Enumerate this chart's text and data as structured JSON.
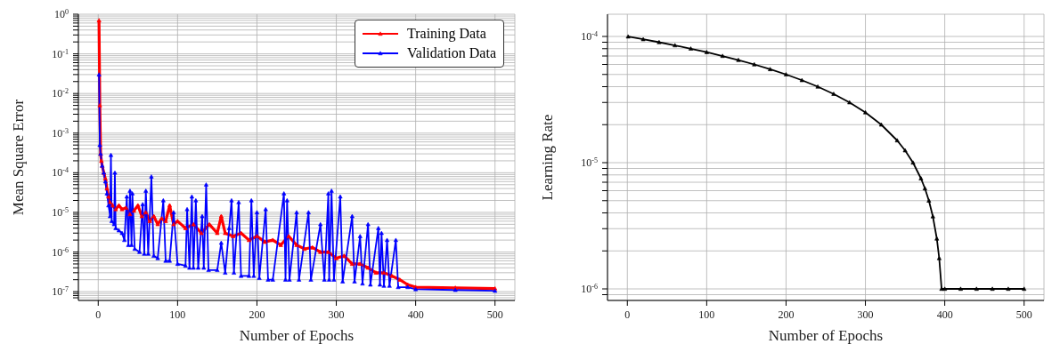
{
  "chart_data": [
    {
      "type": "line",
      "xlabel": "Number of Epochs",
      "ylabel": "Mean Square Error",
      "log": "y",
      "grid": true,
      "legend": "top right",
      "marker": "triangle",
      "line_style": "solid",
      "xlim": [
        -25,
        525
      ],
      "xticks": [
        0,
        100,
        200,
        300,
        400,
        500
      ],
      "ylim": [
        6e-08,
        1
      ],
      "yticks": [
        {
          "value": 1,
          "label": "10$^{0}$"
        },
        {
          "value": 0.9,
          "label": null
        },
        {
          "value": 0.8,
          "label": null
        },
        {
          "value": 0.7,
          "label": null
        },
        {
          "value": 0.6,
          "label": null
        },
        {
          "value": 0.5,
          "label": null
        },
        {
          "value": 0.4,
          "label": null
        },
        {
          "value": 0.3,
          "label": null
        },
        {
          "value": 0.2,
          "label": null
        },
        {
          "value": 0.1,
          "label": "10$^{-1}$"
        },
        {
          "value": 0.09,
          "label": null
        },
        {
          "value": 0.08,
          "label": null
        },
        {
          "value": 0.07,
          "label": null
        },
        {
          "value": 0.06,
          "label": null
        },
        {
          "value": 0.05,
          "label": null
        },
        {
          "value": 0.04,
          "label": null
        },
        {
          "value": 0.03,
          "label": null
        },
        {
          "value": 0.02,
          "label": null
        },
        {
          "value": 0.01,
          "label": "10$^{-2}$"
        },
        {
          "value": 0.009,
          "label": null
        },
        {
          "value": 0.008,
          "label": null
        },
        {
          "value": 0.007,
          "label": null
        },
        {
          "value": 0.006,
          "label": null
        },
        {
          "value": 0.005,
          "label": null
        },
        {
          "value": 0.004,
          "label": null
        },
        {
          "value": 0.003,
          "label": null
        },
        {
          "value": 0.002,
          "label": null
        },
        {
          "value": 0.001,
          "label": "10$^{-3}$"
        },
        {
          "value": 0.0009,
          "label": null
        },
        {
          "value": 0.0008,
          "label": null
        },
        {
          "value": 0.0007,
          "label": null
        },
        {
          "value": 0.0006,
          "label": null
        },
        {
          "value": 0.0005,
          "label": null
        },
        {
          "value": 0.0004,
          "label": null
        },
        {
          "value": 0.0003,
          "label": null
        },
        {
          "value": 0.0002,
          "label": null
        },
        {
          "value": 0.0001,
          "label": "10$^{-4}$"
        },
        {
          "value": 9e-05,
          "label": null
        },
        {
          "value": 8e-05,
          "label": null
        },
        {
          "value": 7e-05,
          "label": null
        },
        {
          "value": 6e-05,
          "label": null
        },
        {
          "value": 5e-05,
          "label": null
        },
        {
          "value": 4e-05,
          "label": null
        },
        {
          "value": 3e-05,
          "label": null
        },
        {
          "value": 2e-05,
          "label": null
        },
        {
          "value": 1e-05,
          "label": "10$^{-5}$"
        },
        {
          "value": 9e-06,
          "label": null
        },
        {
          "value": 8e-06,
          "label": null
        },
        {
          "value": 7e-06,
          "label": null
        },
        {
          "value": 6e-06,
          "label": null
        },
        {
          "value": 5e-06,
          "label": null
        },
        {
          "value": 4e-06,
          "label": null
        },
        {
          "value": 3e-06,
          "label": null
        },
        {
          "value": 2e-06,
          "label": null
        },
        {
          "value": 1e-06,
          "label": "10$^{-6}$"
        },
        {
          "value": 9e-07,
          "label": null
        },
        {
          "value": 8e-07,
          "label": null
        },
        {
          "value": 7e-07,
          "label": null
        },
        {
          "value": 6e-07,
          "label": null
        },
        {
          "value": 5e-07,
          "label": null
        },
        {
          "value": 4e-07,
          "label": null
        },
        {
          "value": 3e-07,
          "label": null
        },
        {
          "value": 2e-07,
          "label": null
        },
        {
          "value": 1e-07,
          "label": "10$^{-7}$"
        },
        {
          "value": 9e-08,
          "label": null
        },
        {
          "value": 8e-08,
          "label": null
        },
        {
          "value": 7e-08,
          "label": null
        }
      ],
      "series": [
        {
          "name": "Training Data",
          "color": "#ff0000",
          "x": [
            1,
            2,
            3,
            4,
            5,
            7,
            9,
            11,
            13,
            15,
            18,
            22,
            26,
            30,
            35,
            40,
            45,
            50,
            55,
            60,
            65,
            70,
            75,
            80,
            85,
            90,
            95,
            100,
            110,
            120,
            130,
            140,
            150,
            155,
            160,
            170,
            180,
            190,
            200,
            210,
            220,
            230,
            240,
            250,
            260,
            270,
            280,
            290,
            300,
            310,
            320,
            330,
            340,
            350,
            360,
            370,
            380,
            390,
            400,
            450,
            500
          ],
          "values": [
            0.7,
            0.005,
            0.0003,
            0.0002,
            0.00015,
            0.0001,
            7e-05,
            4e-05,
            2.5e-05,
            1.8e-05,
            1.5e-05,
            1.2e-05,
            1.5e-05,
            1.2e-05,
            1.3e-05,
            9e-06,
            1.1e-05,
            1.5e-05,
            8e-06,
            1e-05,
            6e-06,
            8e-06,
            5e-06,
            7e-06,
            6e-06,
            1.5e-05,
            5e-06,
            6e-06,
            4e-06,
            5e-06,
            3e-06,
            5e-06,
            3e-06,
            8e-06,
            3e-06,
            2.5e-06,
            3e-06,
            2e-06,
            2.5e-06,
            1.8e-06,
            2e-06,
            1.5e-06,
            2.5e-06,
            1.5e-06,
            1.2e-06,
            1.3e-06,
            1e-06,
            1e-06,
            7e-07,
            8e-07,
            5e-07,
            5e-07,
            4e-07,
            3e-07,
            3e-07,
            2.5e-07,
            2e-07,
            1.5e-07,
            1.3e-07,
            1.25e-07,
            1.2e-07
          ]
        },
        {
          "name": "Validation Data",
          "color": "#0000ff",
          "x": [
            1,
            2,
            3,
            5,
            7,
            9,
            11,
            13,
            15,
            16,
            17,
            20,
            21,
            22,
            26,
            30,
            33,
            36,
            38,
            40,
            42,
            43,
            46,
            52,
            56,
            58,
            60,
            63,
            67,
            70,
            75,
            82,
            85,
            90,
            95,
            100,
            110,
            112,
            115,
            118,
            120,
            123,
            126,
            131,
            133,
            136,
            139,
            150,
            155,
            160,
            165,
            168,
            171,
            177,
            180,
            190,
            193,
            196,
            200,
            203,
            211,
            214,
            220,
            234,
            236,
            238,
            241,
            250,
            253,
            265,
            268,
            280,
            285,
            290,
            291,
            294,
            297,
            305,
            308,
            320,
            323,
            330,
            333,
            340,
            343,
            353,
            355,
            357,
            360,
            364,
            367,
            375,
            378,
            390,
            400,
            450,
            500
          ],
          "values": [
            0.03,
            0.0005,
            0.0003,
            0.00015,
            0.0001,
            6e-05,
            3e-05,
            1.5e-05,
            8e-06,
            0.00028,
            6e-06,
            5e-06,
            0.0001,
            4e-06,
            3.5e-06,
            3e-06,
            2e-06,
            2.5e-05,
            1.5e-06,
            3.5e-05,
            1.5e-06,
            3e-05,
            1.2e-06,
            1e-06,
            1.6e-05,
            9e-07,
            3.5e-05,
            9e-07,
            8e-05,
            8e-07,
            7e-07,
            2e-05,
            6e-07,
            6e-07,
            1e-05,
            5e-07,
            4.5e-07,
            1.2e-05,
            4e-07,
            2.5e-05,
            4e-07,
            2e-05,
            4e-07,
            8e-06,
            4e-07,
            5e-05,
            3.5e-07,
            3.5e-07,
            1.7e-06,
            3e-07,
            4e-06,
            2e-05,
            3e-07,
            1.8e-05,
            2.5e-07,
            2.5e-07,
            2e-05,
            2.5e-07,
            1e-05,
            2.2e-07,
            1.2e-05,
            2e-07,
            2e-07,
            3e-05,
            2e-07,
            2e-05,
            2e-07,
            1e-05,
            2e-07,
            1e-05,
            2e-07,
            5e-06,
            2e-07,
            3e-05,
            2e-07,
            3.5e-05,
            2e-07,
            2.5e-05,
            1.8e-07,
            8e-06,
            1.8e-07,
            2.5e-06,
            1.6e-07,
            5e-06,
            1.5e-07,
            4e-06,
            1.5e-07,
            3e-06,
            1.4e-07,
            2e-06,
            1.4e-07,
            2e-06,
            1.3e-07,
            1.3e-07,
            1.15e-07,
            1.1e-07,
            1.05e-07
          ]
        }
      ]
    },
    {
      "type": "line",
      "xlabel": "Number of Epochs",
      "ylabel": "Learning Rate",
      "log": "y",
      "grid": true,
      "marker": "triangle",
      "line_style": "solid",
      "xlim": [
        -25,
        525
      ],
      "xticks": [
        0,
        100,
        200,
        300,
        400,
        500
      ],
      "ylim": [
        8.1e-07,
        0.00015
      ],
      "yticks": [
        {
          "value": 0.0001,
          "label": "10$^{-4}$"
        },
        {
          "value": 9e-05,
          "label": null
        },
        {
          "value": 8e-05,
          "label": null
        },
        {
          "value": 7e-05,
          "label": null
        },
        {
          "value": 6e-05,
          "label": null
        },
        {
          "value": 5e-05,
          "label": null
        },
        {
          "value": 4e-05,
          "label": null
        },
        {
          "value": 3e-05,
          "label": null
        },
        {
          "value": 2e-05,
          "label": null
        },
        {
          "value": 1e-05,
          "label": "10$^{-5}$"
        },
        {
          "value": 9e-06,
          "label": null
        },
        {
          "value": 8e-06,
          "label": null
        },
        {
          "value": 7e-06,
          "label": null
        },
        {
          "value": 6e-06,
          "label": null
        },
        {
          "value": 5e-06,
          "label": null
        },
        {
          "value": 4e-06,
          "label": null
        },
        {
          "value": 3e-06,
          "label": null
        },
        {
          "value": 2e-06,
          "label": null
        },
        {
          "value": 1e-06,
          "label": "10$^{-6}$"
        },
        {
          "value": 9e-07,
          "label": null
        }
      ],
      "series": [
        {
          "color": "#000000",
          "x": [
            1,
            20,
            40,
            60,
            80,
            100,
            120,
            140,
            160,
            180,
            200,
            220,
            240,
            260,
            280,
            300,
            320,
            340,
            350,
            360,
            370,
            375,
            380,
            385,
            390,
            393,
            396,
            400,
            420,
            440,
            460,
            480,
            500
          ],
          "values": [
            9.98e-05,
            9.5e-05,
            9e-05,
            8.5e-05,
            8e-05,
            7.5e-05,
            7e-05,
            6.5e-05,
            6e-05,
            5.5e-05,
            5e-05,
            4.5e-05,
            4e-05,
            3.5e-05,
            3e-05,
            2.5e-05,
            2e-05,
            1.5e-05,
            1.25e-05,
            1e-05,
            7.5e-06,
            6.25e-06,
            5e-06,
            3.75e-06,
            2.5e-06,
            1.75e-06,
            1e-06,
            1e-06,
            1e-06,
            1e-06,
            1e-06,
            1e-06,
            1e-06
          ]
        }
      ]
    }
  ]
}
